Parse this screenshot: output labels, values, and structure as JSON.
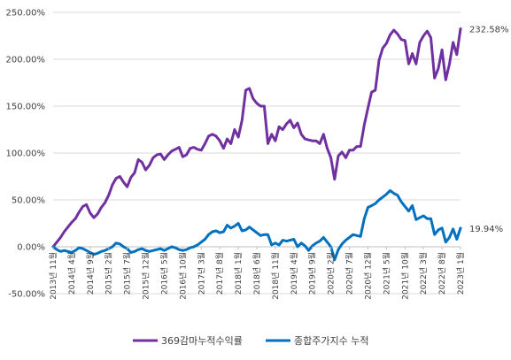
{
  "chart_data": {
    "type": "line",
    "title": "",
    "xlabel": "",
    "ylabel": "",
    "ylim": [
      -0.5,
      2.5
    ],
    "yticks": [
      "-50.00%",
      "0.00%",
      "50.00%",
      "100.00%",
      "150.00%",
      "200.00%",
      "250.00%"
    ],
    "ytick_values": [
      -0.5,
      0,
      0.5,
      1.0,
      1.5,
      2.0,
      2.5
    ],
    "grid": true,
    "legend_position": "bottom",
    "x_start": "2013-11",
    "x_end": "2023-01",
    "xticks": [
      "2013년 11월",
      "2014년 4월",
      "2014년 9월",
      "2015년 2월",
      "2015년 7월",
      "2015년 12월",
      "2016년 5월",
      "2016년 10월",
      "2017년 3월",
      "2017년 8월",
      "2018년 1월",
      "2018년 6월",
      "2018년 11월",
      "2019년 4월",
      "2019년 9월",
      "2020년 2월",
      "2020년 7월",
      "2020년 12월",
      "2021년 5월",
      "2021년 10월",
      "2022년 3월",
      "2022년 8월",
      "2023년 1월"
    ],
    "end_labels": [
      "232.58%",
      "19.94%"
    ],
    "series": [
      {
        "name": "369감마누적수익률",
        "color": "#7030A0",
        "points": [
          [
            "2013-11",
            0.0
          ],
          [
            "2013-12",
            0.05
          ],
          [
            "2014-01",
            0.1
          ],
          [
            "2014-02",
            0.16
          ],
          [
            "2014-03",
            0.21
          ],
          [
            "2014-04",
            0.26
          ],
          [
            "2014-05",
            0.3
          ],
          [
            "2014-06",
            0.37
          ],
          [
            "2014-07",
            0.43
          ],
          [
            "2014-08",
            0.45
          ],
          [
            "2014-09",
            0.36
          ],
          [
            "2014-10",
            0.31
          ],
          [
            "2014-11",
            0.35
          ],
          [
            "2014-12",
            0.42
          ],
          [
            "2015-01",
            0.47
          ],
          [
            "2015-02",
            0.55
          ],
          [
            "2015-03",
            0.66
          ],
          [
            "2015-04",
            0.73
          ],
          [
            "2015-05",
            0.75
          ],
          [
            "2015-06",
            0.69
          ],
          [
            "2015-07",
            0.64
          ],
          [
            "2015-08",
            0.74
          ],
          [
            "2015-09",
            0.79
          ],
          [
            "2015-10",
            0.93
          ],
          [
            "2015-11",
            0.9
          ],
          [
            "2015-12",
            0.82
          ],
          [
            "2016-01",
            0.87
          ],
          [
            "2016-02",
            0.95
          ],
          [
            "2016-03",
            0.98
          ],
          [
            "2016-04",
            0.99
          ],
          [
            "2016-05",
            0.93
          ],
          [
            "2016-06",
            0.98
          ],
          [
            "2016-07",
            1.02
          ],
          [
            "2016-08",
            1.04
          ],
          [
            "2016-09",
            1.06
          ],
          [
            "2016-10",
            0.96
          ],
          [
            "2016-11",
            0.98
          ],
          [
            "2016-12",
            1.05
          ],
          [
            "2017-01",
            1.06
          ],
          [
            "2017-02",
            1.04
          ],
          [
            "2017-03",
            1.03
          ],
          [
            "2017-04",
            1.1
          ],
          [
            "2017-05",
            1.18
          ],
          [
            "2017-06",
            1.2
          ],
          [
            "2017-07",
            1.18
          ],
          [
            "2017-08",
            1.13
          ],
          [
            "2017-09",
            1.05
          ],
          [
            "2017-10",
            1.15
          ],
          [
            "2017-11",
            1.1
          ],
          [
            "2017-12",
            1.25
          ],
          [
            "2018-01",
            1.17
          ],
          [
            "2018-02",
            1.35
          ],
          [
            "2018-03",
            1.67
          ],
          [
            "2018-04",
            1.69
          ],
          [
            "2018-05",
            1.58
          ],
          [
            "2018-06",
            1.53
          ],
          [
            "2018-07",
            1.5
          ],
          [
            "2018-08",
            1.5
          ],
          [
            "2018-09",
            1.1
          ],
          [
            "2018-10",
            1.2
          ],
          [
            "2018-11",
            1.13
          ],
          [
            "2018-12",
            1.28
          ],
          [
            "2019-01",
            1.25
          ],
          [
            "2019-02",
            1.31
          ],
          [
            "2019-03",
            1.35
          ],
          [
            "2019-04",
            1.27
          ],
          [
            "2019-05",
            1.32
          ],
          [
            "2019-06",
            1.2
          ],
          [
            "2019-07",
            1.15
          ],
          [
            "2019-08",
            1.14
          ],
          [
            "2019-09",
            1.13
          ],
          [
            "2019-10",
            1.13
          ],
          [
            "2019-11",
            1.1
          ],
          [
            "2019-12",
            1.2
          ],
          [
            "2020-01",
            1.05
          ],
          [
            "2020-02",
            0.95
          ],
          [
            "2020-03",
            0.72
          ],
          [
            "2020-04",
            0.97
          ],
          [
            "2020-05",
            1.01
          ],
          [
            "2020-06",
            0.95
          ],
          [
            "2020-07",
            1.03
          ],
          [
            "2020-08",
            1.03
          ],
          [
            "2020-09",
            1.07
          ],
          [
            "2020-10",
            1.07
          ],
          [
            "2020-11",
            1.3
          ],
          [
            "2020-12",
            1.48
          ],
          [
            "2021-01",
            1.65
          ],
          [
            "2021-02",
            1.67
          ],
          [
            "2021-03",
            1.99
          ],
          [
            "2021-04",
            2.12
          ],
          [
            "2021-05",
            2.17
          ],
          [
            "2021-06",
            2.26
          ],
          [
            "2021-07",
            2.31
          ],
          [
            "2021-08",
            2.27
          ],
          [
            "2021-09",
            2.21
          ],
          [
            "2021-10",
            2.2
          ],
          [
            "2021-11",
            1.95
          ],
          [
            "2021-12",
            2.06
          ],
          [
            "2022-01",
            1.95
          ],
          [
            "2022-02",
            2.18
          ],
          [
            "2022-03",
            2.25
          ],
          [
            "2022-04",
            2.3
          ],
          [
            "2022-05",
            2.23
          ],
          [
            "2022-06",
            1.8
          ],
          [
            "2022-07",
            1.9
          ],
          [
            "2022-08",
            2.1
          ],
          [
            "2022-09",
            1.78
          ],
          [
            "2022-10",
            1.95
          ],
          [
            "2022-11",
            2.18
          ],
          [
            "2022-12",
            2.05
          ],
          [
            "2023-01",
            2.3258
          ]
        ]
      },
      {
        "name": "종합주가지수 누적",
        "color": "#0070C0",
        "points": [
          [
            "2013-11",
            0.0
          ],
          [
            "2013-12",
            -0.03
          ],
          [
            "2014-01",
            -0.05
          ],
          [
            "2014-02",
            -0.04
          ],
          [
            "2014-03",
            -0.05
          ],
          [
            "2014-04",
            -0.06
          ],
          [
            "2014-05",
            -0.04
          ],
          [
            "2014-06",
            -0.01
          ],
          [
            "2014-07",
            -0.02
          ],
          [
            "2014-08",
            -0.04
          ],
          [
            "2014-09",
            -0.06
          ],
          [
            "2014-10",
            -0.08
          ],
          [
            "2014-11",
            -0.07
          ],
          [
            "2014-12",
            -0.05
          ],
          [
            "2015-01",
            -0.04
          ],
          [
            "2015-02",
            -0.02
          ],
          [
            "2015-03",
            0.0
          ],
          [
            "2015-04",
            0.04
          ],
          [
            "2015-05",
            0.03
          ],
          [
            "2015-06",
            0.0
          ],
          [
            "2015-07",
            -0.02
          ],
          [
            "2015-08",
            -0.06
          ],
          [
            "2015-09",
            -0.05
          ],
          [
            "2015-10",
            -0.03
          ],
          [
            "2015-11",
            -0.02
          ],
          [
            "2015-12",
            -0.04
          ],
          [
            "2016-01",
            -0.05
          ],
          [
            "2016-02",
            -0.04
          ],
          [
            "2016-03",
            -0.03
          ],
          [
            "2016-04",
            -0.02
          ],
          [
            "2016-05",
            -0.04
          ],
          [
            "2016-06",
            -0.02
          ],
          [
            "2016-07",
            0.0
          ],
          [
            "2016-08",
            -0.01
          ],
          [
            "2016-09",
            -0.03
          ],
          [
            "2016-10",
            -0.04
          ],
          [
            "2016-11",
            -0.03
          ],
          [
            "2016-12",
            -0.01
          ],
          [
            "2017-01",
            0.0
          ],
          [
            "2017-02",
            0.02
          ],
          [
            "2017-03",
            0.05
          ],
          [
            "2017-04",
            0.08
          ],
          [
            "2017-05",
            0.13
          ],
          [
            "2017-06",
            0.16
          ],
          [
            "2017-07",
            0.17
          ],
          [
            "2017-08",
            0.15
          ],
          [
            "2017-09",
            0.16
          ],
          [
            "2017-10",
            0.23
          ],
          [
            "2017-11",
            0.2
          ],
          [
            "2017-12",
            0.22
          ],
          [
            "2018-01",
            0.25
          ],
          [
            "2018-02",
            0.17
          ],
          [
            "2018-03",
            0.18
          ],
          [
            "2018-04",
            0.21
          ],
          [
            "2018-05",
            0.18
          ],
          [
            "2018-06",
            0.15
          ],
          [
            "2018-07",
            0.12
          ],
          [
            "2018-08",
            0.13
          ],
          [
            "2018-09",
            0.13
          ],
          [
            "2018-10",
            0.02
          ],
          [
            "2018-11",
            0.04
          ],
          [
            "2018-12",
            0.02
          ],
          [
            "2019-01",
            0.07
          ],
          [
            "2019-02",
            0.06
          ],
          [
            "2019-03",
            0.07
          ],
          [
            "2019-04",
            0.08
          ],
          [
            "2019-05",
            0.0
          ],
          [
            "2019-06",
            0.04
          ],
          [
            "2019-07",
            0.01
          ],
          [
            "2019-08",
            -0.04
          ],
          [
            "2019-09",
            0.01
          ],
          [
            "2019-10",
            0.04
          ],
          [
            "2019-11",
            0.06
          ],
          [
            "2019-12",
            0.1
          ],
          [
            "2020-01",
            0.05
          ],
          [
            "2020-02",
            0.0
          ],
          [
            "2020-03",
            -0.14
          ],
          [
            "2020-04",
            -0.03
          ],
          [
            "2020-05",
            0.03
          ],
          [
            "2020-06",
            0.07
          ],
          [
            "2020-07",
            0.1
          ],
          [
            "2020-08",
            0.13
          ],
          [
            "2020-09",
            0.12
          ],
          [
            "2020-10",
            0.11
          ],
          [
            "2020-11",
            0.3
          ],
          [
            "2020-12",
            0.42
          ],
          [
            "2021-01",
            0.44
          ],
          [
            "2021-02",
            0.46
          ],
          [
            "2021-03",
            0.5
          ],
          [
            "2021-04",
            0.53
          ],
          [
            "2021-05",
            0.56
          ],
          [
            "2021-06",
            0.6
          ],
          [
            "2021-07",
            0.57
          ],
          [
            "2021-08",
            0.55
          ],
          [
            "2021-09",
            0.48
          ],
          [
            "2021-10",
            0.43
          ],
          [
            "2021-11",
            0.38
          ],
          [
            "2021-12",
            0.44
          ],
          [
            "2022-01",
            0.29
          ],
          [
            "2022-02",
            0.31
          ],
          [
            "2022-03",
            0.33
          ],
          [
            "2022-04",
            0.3
          ],
          [
            "2022-05",
            0.3
          ],
          [
            "2022-06",
            0.13
          ],
          [
            "2022-07",
            0.18
          ],
          [
            "2022-08",
            0.2
          ],
          [
            "2022-09",
            0.05
          ],
          [
            "2022-10",
            0.1
          ],
          [
            "2022-11",
            0.19
          ],
          [
            "2022-12",
            0.08
          ],
          [
            "2023-01",
            0.1994
          ]
        ]
      }
    ]
  }
}
